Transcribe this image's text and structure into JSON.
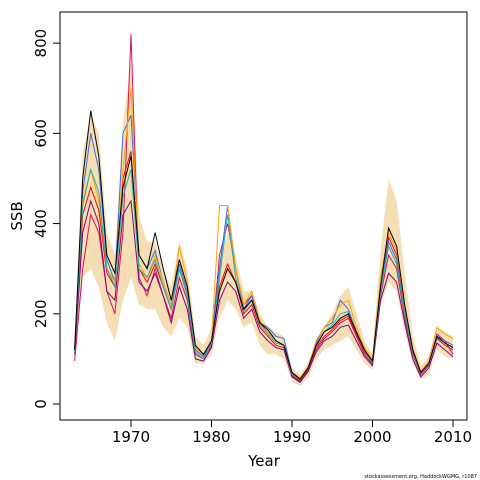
{
  "chart_data": {
    "type": "line",
    "x_label": "Year",
    "y_label": "SSB",
    "footnote": "stockassessment.org, HaddockWGMG, r1087",
    "x": [
      1963,
      1964,
      1965,
      1966,
      1967,
      1968,
      1969,
      1970,
      1971,
      1972,
      1973,
      1974,
      1975,
      1976,
      1977,
      1978,
      1979,
      1980,
      1981,
      1982,
      1983,
      1984,
      1985,
      1986,
      1987,
      1988,
      1989,
      1990,
      1991,
      1992,
      1993,
      1994,
      1995,
      1996,
      1997,
      1998,
      1999,
      2000,
      2001,
      2002,
      2003,
      2004,
      2005,
      2006,
      2007,
      2008,
      2009,
      2010
    ],
    "xlim": [
      1961.18,
      2011.74
    ],
    "xticks": [
      1970,
      1980,
      1990,
      2000,
      2010
    ],
    "ylim": [
      -35.5,
      869
    ],
    "yticks": [
      0,
      200,
      400,
      600,
      800
    ],
    "band": {
      "color": "#f5deb3",
      "upper": [
        140,
        560,
        640,
        600,
        380,
        330,
        620,
        760,
        420,
        360,
        360,
        300,
        260,
        360,
        300,
        150,
        130,
        170,
        320,
        380,
        330,
        250,
        250,
        200,
        170,
        160,
        150,
        80,
        65,
        90,
        140,
        170,
        200,
        240,
        260,
        200,
        140,
        110,
        340,
        500,
        450,
        290,
        150,
        85,
        105,
        170,
        160,
        150
      ],
      "lower": [
        90,
        280,
        300,
        260,
        180,
        140,
        230,
        280,
        220,
        210,
        210,
        170,
        150,
        190,
        170,
        90,
        90,
        110,
        190,
        230,
        210,
        170,
        180,
        130,
        110,
        110,
        100,
        50,
        40,
        60,
        100,
        120,
        130,
        140,
        150,
        120,
        90,
        75,
        220,
        270,
        250,
        160,
        90,
        55,
        65,
        120,
        105,
        100
      ]
    },
    "series": [
      {
        "color": "#ff0000",
        "values": [
          120,
          420,
          480,
          430,
          290,
          260,
          500,
          560,
          300,
          270,
          310,
          260,
          210,
          300,
          240,
          120,
          105,
          135,
          260,
          310,
          270,
          200,
          220,
          170,
          150,
          130,
          125,
          65,
          52,
          78,
          125,
          150,
          165,
          185,
          195,
          155,
          115,
          92,
          255,
          370,
          330,
          210,
          115,
          68,
          88,
          145,
          130,
          120
        ]
      },
      {
        "color": "#d4145a",
        "values": [
          95,
          300,
          420,
          380,
          250,
          200,
          380,
          820,
          280,
          240,
          300,
          240,
          190,
          280,
          230,
          110,
          100,
          130,
          330,
          400,
          300,
          220,
          240,
          180,
          160,
          140,
          130,
          62,
          50,
          75,
          120,
          145,
          160,
          180,
          190,
          150,
          110,
          88,
          240,
          330,
          300,
          190,
          110,
          65,
          85,
          155,
          140,
          110
        ]
      },
      {
        "color": "#4169e1",
        "values": [
          125,
          470,
          600,
          520,
          320,
          270,
          600,
          640,
          330,
          300,
          340,
          270,
          220,
          310,
          250,
          120,
          105,
          140,
          300,
          440,
          300,
          210,
          240,
          180,
          170,
          150,
          145,
          68,
          55,
          80,
          135,
          170,
          180,
          230,
          210,
          160,
          120,
          95,
          260,
          360,
          320,
          200,
          120,
          70,
          90,
          150,
          140,
          130
        ]
      },
      {
        "color": "#ffa500",
        "values": [
          130,
          450,
          520,
          450,
          300,
          270,
          520,
          700,
          310,
          280,
          330,
          270,
          220,
          350,
          270,
          125,
          110,
          140,
          440,
          440,
          300,
          220,
          250,
          185,
          160,
          140,
          130,
          70,
          58,
          82,
          140,
          170,
          190,
          220,
          230,
          170,
          125,
          100,
          280,
          380,
          340,
          215,
          125,
          72,
          95,
          170,
          155,
          145
        ]
      },
      {
        "color": "#800080",
        "values": [
          110,
          380,
          450,
          400,
          250,
          230,
          420,
          450,
          270,
          250,
          290,
          240,
          180,
          260,
          210,
          100,
          95,
          125,
          230,
          270,
          250,
          190,
          210,
          160,
          140,
          125,
          120,
          60,
          48,
          72,
          115,
          140,
          150,
          170,
          175,
          140,
          105,
          85,
          230,
          290,
          270,
          180,
          100,
          60,
          80,
          135,
          120,
          105
        ]
      },
      {
        "color": "#20b2aa",
        "values": [
          118,
          440,
          520,
          470,
          300,
          260,
          460,
          520,
          300,
          280,
          320,
          260,
          210,
          300,
          240,
          115,
          100,
          135,
          280,
          420,
          280,
          205,
          230,
          175,
          155,
          135,
          130,
          66,
          54,
          80,
          128,
          160,
          175,
          200,
          205,
          160,
          118,
          92,
          250,
          350,
          310,
          200,
          115,
          68,
          88,
          148,
          135,
          125
        ]
      },
      {
        "color": "#000000",
        "values": [
          120,
          500,
          650,
          550,
          330,
          290,
          480,
          550,
          330,
          300,
          380,
          300,
          230,
          320,
          260,
          130,
          110,
          140,
          250,
          300,
          270,
          210,
          230,
          180,
          165,
          140,
          130,
          70,
          55,
          80,
          130,
          160,
          170,
          190,
          200,
          160,
          120,
          95,
          260,
          390,
          350,
          220,
          120,
          70,
          90,
          150,
          135,
          125
        ]
      }
    ]
  }
}
